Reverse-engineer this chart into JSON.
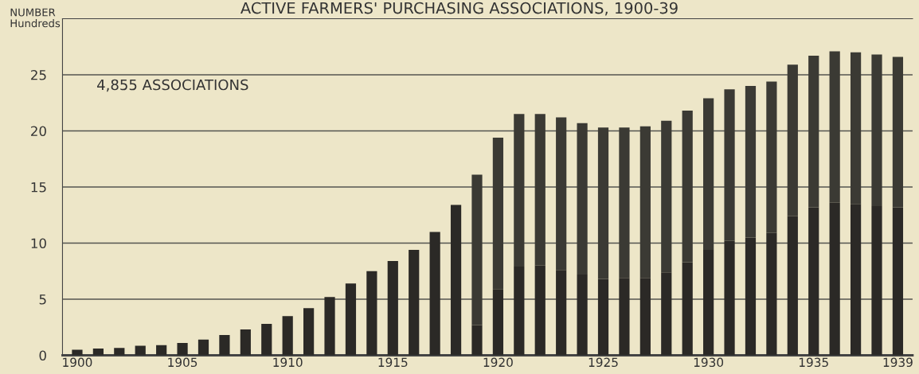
{
  "chart_data": {
    "type": "bar",
    "title": "ACTIVE FARMERS' PURCHASING ASSOCIATIONS, 1900-39",
    "ylabel": "NUMBER\nHundreds",
    "categories": [
      "1900",
      null,
      null,
      null,
      null,
      "1905",
      null,
      null,
      null,
      null,
      "1910",
      null,
      null,
      null,
      null,
      "1915",
      null,
      null,
      null,
      null,
      "1920",
      null,
      null,
      null,
      null,
      "1925",
      null,
      null,
      null,
      null,
      "1930",
      null,
      null,
      null,
      null,
      "1935",
      null,
      null,
      null,
      "1939"
    ],
    "stacked": true,
    "series": [
      {
        "color": "#2b2926",
        "values": [
          0.5,
          0.6,
          0.65,
          0.85,
          0.9,
          1.1,
          1.4,
          1.8,
          2.3,
          2.8,
          3.5,
          4.2,
          5.2,
          6.4,
          7.5,
          8.4,
          9.4,
          11.0,
          13.4,
          2.7,
          5.9,
          7.9,
          8.0,
          7.6,
          7.2,
          6.8,
          6.9,
          6.9,
          7.4,
          8.3,
          9.4,
          10.2,
          10.5,
          10.9,
          12.4,
          13.2,
          13.6,
          13.5,
          13.3,
          13.2
        ]
      },
      {
        "color": "#3b3a34",
        "values": [
          null,
          null,
          null,
          null,
          null,
          null,
          null,
          null,
          null,
          null,
          null,
          null,
          null,
          null,
          null,
          null,
          null,
          null,
          null,
          13.4,
          13.5,
          13.6,
          13.5,
          13.6,
          13.5,
          13.5,
          13.4,
          13.5,
          13.5,
          13.5,
          13.5,
          13.5,
          13.5,
          13.5,
          13.5,
          13.5,
          13.5,
          13.5,
          13.5,
          13.4
        ]
      }
    ],
    "ylim": [
      0,
      30
    ],
    "yticks": [
      0,
      5,
      10,
      15,
      20,
      25
    ],
    "grid": "y",
    "annotations": [
      "4,855 ASSOCIATIONS"
    ]
  }
}
